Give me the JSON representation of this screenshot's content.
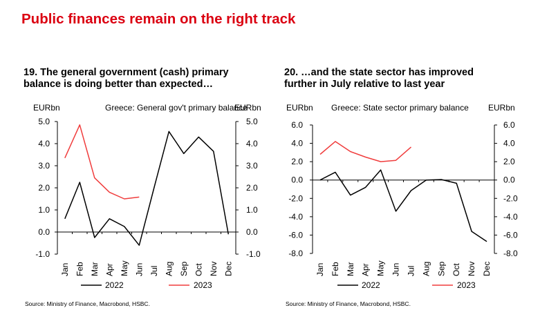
{
  "page_title": "Public finances remain on the right track",
  "colors": {
    "title_red": "#db0011",
    "series_2022": "#000000",
    "series_2023": "#f03c3c",
    "axis": "#000000"
  },
  "chart_data": [
    {
      "type": "line",
      "number_title_line1": "19. The general government (cash) primary",
      "number_title_line2": "balance is doing better than expected…",
      "inner_title": "Greece: General gov't primary balance",
      "ylabel_left": "EURbn",
      "ylabel_right": "EURbn",
      "ylim": [
        -1.0,
        5.0
      ],
      "yticks": [
        "5.0",
        "4.0",
        "3.0",
        "2.0",
        "1.0",
        "0.0",
        "-1.0"
      ],
      "ytick_values": [
        5,
        4,
        3,
        2,
        1,
        0,
        -1
      ],
      "categories": [
        "Jan",
        "Feb",
        "Mar",
        "Apr",
        "May",
        "Jun",
        "Jul",
        "Aug",
        "Sep",
        "Oct",
        "Nov",
        "Dec"
      ],
      "series": [
        {
          "name": "2022",
          "values": [
            0.6,
            2.25,
            -0.25,
            0.6,
            0.25,
            -0.6,
            2.0,
            4.55,
            3.55,
            4.3,
            3.65,
            -0.1
          ]
        },
        {
          "name": "2023",
          "values": [
            3.35,
            4.85,
            2.45,
            1.8,
            1.5,
            1.58,
            null,
            null,
            null,
            null,
            null,
            null
          ]
        }
      ],
      "source": "Source: Ministry of Finance, Macrobond, HSBC."
    },
    {
      "type": "line",
      "number_title_line1": "20. …and the state sector has improved",
      "number_title_line2": "further in July relative to last year",
      "inner_title": "Greece: State sector primary balance",
      "ylabel_left": "EURbn",
      "ylabel_right": "EURbn",
      "ylim": [
        -8.0,
        6.0
      ],
      "yticks": [
        "6.0",
        "4.0",
        "2.0",
        "0.0",
        "-2.0",
        "-4.0",
        "-6.0",
        "-8.0"
      ],
      "ytick_values": [
        6,
        4,
        2,
        0,
        -2,
        -4,
        -6,
        -8
      ],
      "categories": [
        "Jan",
        "Feb",
        "Mar",
        "Apr",
        "May",
        "Jun",
        "Jul",
        "Aug",
        "Sep",
        "Oct",
        "Nov",
        "Dec"
      ],
      "series": [
        {
          "name": "2022",
          "values": [
            0.0,
            0.85,
            -1.65,
            -0.8,
            1.1,
            -3.4,
            -1.15,
            0.0,
            0.05,
            -0.35,
            -5.6,
            -6.7
          ]
        },
        {
          "name": "2023",
          "values": [
            2.8,
            4.2,
            3.1,
            2.5,
            2.0,
            2.15,
            3.6,
            null,
            null,
            null,
            null,
            null
          ]
        }
      ],
      "source": "Source: Ministry of Finance, Macrobond, HSBC."
    }
  ]
}
